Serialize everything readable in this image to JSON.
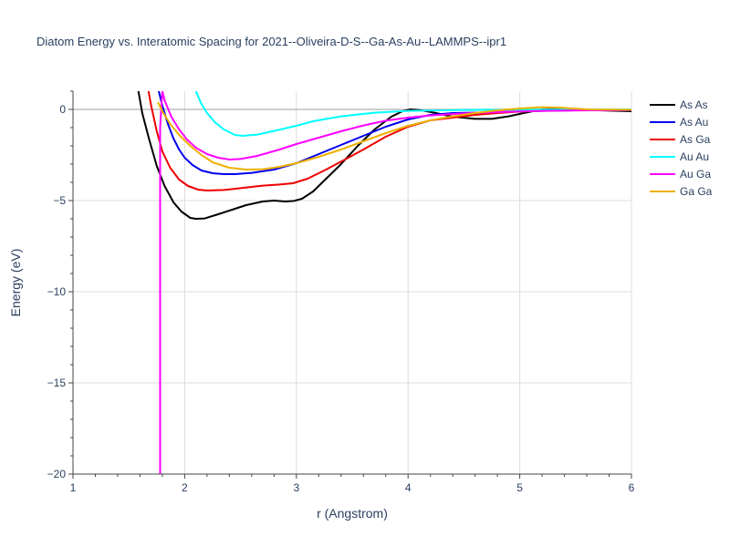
{
  "chart_data": {
    "type": "line",
    "title": "Diatom Energy vs. Interatomic Spacing for 2021--Oliveira-D-S--Ga-As-Au--LAMMPS--ipr1",
    "xlabel": "r (Angstrom)",
    "ylabel": "Energy (eV)",
    "xlim": [
      1,
      6
    ],
    "ylim": [
      -20,
      1
    ],
    "x_ticks": [
      1,
      2,
      3,
      4,
      5,
      6
    ],
    "x_tick_labels": [
      "1",
      "2",
      "3",
      "4",
      "5",
      "6"
    ],
    "y_ticks": [
      0,
      -5,
      -10,
      -15,
      -20
    ],
    "y_tick_labels": [
      "0",
      "−5",
      "−10",
      "−15",
      "−20"
    ],
    "grid": true,
    "legend_position": "right",
    "series": [
      {
        "name": "As As",
        "color": "#000000",
        "points": [
          [
            1.58,
            1.2
          ],
          [
            1.62,
            -0.2
          ],
          [
            1.68,
            -1.6
          ],
          [
            1.75,
            -3.1
          ],
          [
            1.82,
            -4.2
          ],
          [
            1.9,
            -5.1
          ],
          [
            1.97,
            -5.6
          ],
          [
            2.05,
            -5.95
          ],
          [
            2.1,
            -6.0
          ],
          [
            2.18,
            -5.98
          ],
          [
            2.3,
            -5.75
          ],
          [
            2.45,
            -5.45
          ],
          [
            2.55,
            -5.25
          ],
          [
            2.7,
            -5.05
          ],
          [
            2.8,
            -5.0
          ],
          [
            2.9,
            -5.05
          ],
          [
            2.98,
            -5.02
          ],
          [
            3.05,
            -4.9
          ],
          [
            3.15,
            -4.5
          ],
          [
            3.25,
            -3.9
          ],
          [
            3.4,
            -3.0
          ],
          [
            3.55,
            -2.0
          ],
          [
            3.7,
            -1.1
          ],
          [
            3.85,
            -0.4
          ],
          [
            3.95,
            -0.1
          ],
          [
            4.02,
            0.0
          ],
          [
            4.12,
            -0.05
          ],
          [
            4.25,
            -0.2
          ],
          [
            4.4,
            -0.4
          ],
          [
            4.6,
            -0.52
          ],
          [
            4.75,
            -0.52
          ],
          [
            4.9,
            -0.38
          ],
          [
            5.05,
            -0.18
          ],
          [
            5.2,
            0.0
          ],
          [
            5.35,
            0.05
          ],
          [
            5.5,
            0.02
          ],
          [
            5.7,
            -0.05
          ],
          [
            6.0,
            -0.1
          ]
        ]
      },
      {
        "name": "As Au",
        "color": "#0000ee",
        "points": [
          [
            1.76,
            1.2
          ],
          [
            1.8,
            0.2
          ],
          [
            1.85,
            -0.8
          ],
          [
            1.9,
            -1.6
          ],
          [
            1.95,
            -2.2
          ],
          [
            2.0,
            -2.65
          ],
          [
            2.07,
            -3.05
          ],
          [
            2.15,
            -3.35
          ],
          [
            2.25,
            -3.5
          ],
          [
            2.35,
            -3.55
          ],
          [
            2.45,
            -3.55
          ],
          [
            2.6,
            -3.48
          ],
          [
            2.8,
            -3.3
          ],
          [
            3.0,
            -2.95
          ],
          [
            3.2,
            -2.45
          ],
          [
            3.4,
            -1.95
          ],
          [
            3.6,
            -1.45
          ],
          [
            3.8,
            -0.95
          ],
          [
            4.0,
            -0.55
          ],
          [
            4.2,
            -0.3
          ],
          [
            4.4,
            -0.2
          ],
          [
            4.6,
            -0.18
          ],
          [
            4.8,
            -0.15
          ],
          [
            5.0,
            -0.1
          ],
          [
            5.2,
            -0.08
          ],
          [
            5.5,
            -0.05
          ],
          [
            6.0,
            -0.03
          ]
        ]
      },
      {
        "name": "As Ga",
        "color": "#ee0000",
        "points": [
          [
            1.67,
            1.2
          ],
          [
            1.7,
            0.2
          ],
          [
            1.75,
            -1.2
          ],
          [
            1.8,
            -2.3
          ],
          [
            1.87,
            -3.2
          ],
          [
            1.95,
            -3.85
          ],
          [
            2.03,
            -4.2
          ],
          [
            2.12,
            -4.4
          ],
          [
            2.2,
            -4.45
          ],
          [
            2.35,
            -4.42
          ],
          [
            2.5,
            -4.32
          ],
          [
            2.7,
            -4.18
          ],
          [
            2.85,
            -4.12
          ],
          [
            2.97,
            -4.05
          ],
          [
            3.1,
            -3.8
          ],
          [
            3.25,
            -3.35
          ],
          [
            3.45,
            -2.7
          ],
          [
            3.6,
            -2.2
          ],
          [
            3.8,
            -1.5
          ],
          [
            4.0,
            -0.95
          ],
          [
            4.2,
            -0.6
          ],
          [
            4.4,
            -0.45
          ],
          [
            4.6,
            -0.3
          ],
          [
            4.8,
            -0.2
          ],
          [
            5.0,
            -0.12
          ],
          [
            5.3,
            -0.05
          ],
          [
            5.6,
            -0.05
          ],
          [
            6.0,
            -0.03
          ]
        ]
      },
      {
        "name": "Au Au",
        "color": "#00ffff",
        "points": [
          [
            2.1,
            1.0
          ],
          [
            2.15,
            0.3
          ],
          [
            2.2,
            -0.2
          ],
          [
            2.27,
            -0.7
          ],
          [
            2.35,
            -1.1
          ],
          [
            2.45,
            -1.4
          ],
          [
            2.52,
            -1.45
          ],
          [
            2.65,
            -1.38
          ],
          [
            2.8,
            -1.18
          ],
          [
            3.0,
            -0.9
          ],
          [
            3.15,
            -0.65
          ],
          [
            3.4,
            -0.38
          ],
          [
            3.7,
            -0.18
          ],
          [
            4.0,
            -0.08
          ],
          [
            4.5,
            -0.03
          ],
          [
            5.0,
            -0.01
          ],
          [
            6.0,
            0.0
          ]
        ]
      },
      {
        "name": "Au Ga",
        "color": "#ff00ff",
        "points": [
          [
            1.78,
            -20.0
          ],
          [
            1.78,
            -1.0
          ],
          [
            1.8,
            1.0
          ],
          [
            1.82,
            0.5
          ],
          [
            1.88,
            -0.4
          ],
          [
            1.95,
            -1.1
          ],
          [
            2.02,
            -1.65
          ],
          [
            2.1,
            -2.1
          ],
          [
            2.2,
            -2.45
          ],
          [
            2.3,
            -2.65
          ],
          [
            2.4,
            -2.75
          ],
          [
            2.5,
            -2.72
          ],
          [
            2.65,
            -2.55
          ],
          [
            2.85,
            -2.2
          ],
          [
            3.0,
            -1.9
          ],
          [
            3.2,
            -1.55
          ],
          [
            3.4,
            -1.2
          ],
          [
            3.6,
            -0.88
          ],
          [
            3.8,
            -0.62
          ],
          [
            4.0,
            -0.45
          ],
          [
            4.2,
            -0.33
          ],
          [
            4.5,
            -0.22
          ],
          [
            4.8,
            -0.15
          ],
          [
            5.2,
            -0.08
          ],
          [
            6.0,
            -0.03
          ]
        ]
      },
      {
        "name": "Ga Ga",
        "color": "#eeb000",
        "points": [
          [
            1.76,
            0.4
          ],
          [
            1.8,
            -0.1
          ],
          [
            1.87,
            -0.8
          ],
          [
            1.95,
            -1.4
          ],
          [
            2.05,
            -2.0
          ],
          [
            2.15,
            -2.5
          ],
          [
            2.25,
            -2.9
          ],
          [
            2.4,
            -3.2
          ],
          [
            2.55,
            -3.3
          ],
          [
            2.7,
            -3.28
          ],
          [
            2.85,
            -3.15
          ],
          [
            3.0,
            -2.95
          ],
          [
            3.2,
            -2.6
          ],
          [
            3.4,
            -2.2
          ],
          [
            3.6,
            -1.75
          ],
          [
            3.8,
            -1.3
          ],
          [
            4.0,
            -0.9
          ],
          [
            4.2,
            -0.6
          ],
          [
            4.4,
            -0.38
          ],
          [
            4.6,
            -0.2
          ],
          [
            4.8,
            -0.05
          ],
          [
            5.0,
            0.05
          ],
          [
            5.2,
            0.12
          ],
          [
            5.35,
            0.1
          ],
          [
            5.6,
            0.0
          ],
          [
            6.0,
            -0.02
          ]
        ]
      }
    ]
  }
}
